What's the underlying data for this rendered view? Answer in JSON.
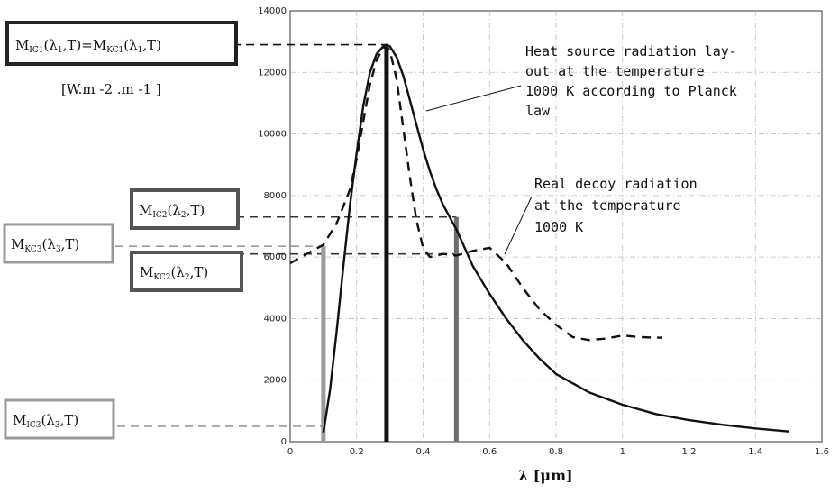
{
  "chart_data": {
    "type": "line",
    "xlabel": "λ [μm]",
    "xlim": [
      0,
      1.6
    ],
    "ylim": [
      0,
      14000
    ],
    "x_ticks": [
      "0",
      "0.2",
      "0.4",
      "0.6",
      "0.8",
      "1",
      "1.2",
      "1.4",
      "1.6"
    ],
    "y_ticks": [
      "0",
      "2000",
      "4000",
      "6000",
      "8000",
      "10000",
      "12000",
      "14000"
    ],
    "grid": true,
    "series": [
      {
        "style": "solid",
        "x": [
          0.1,
          0.12,
          0.14,
          0.16,
          0.18,
          0.2,
          0.22,
          0.24,
          0.26,
          0.28,
          0.29,
          0.3,
          0.32,
          0.34,
          0.36,
          0.38,
          0.4,
          0.42,
          0.44,
          0.46,
          0.48,
          0.5,
          0.55,
          0.6,
          0.65,
          0.7,
          0.75,
          0.8,
          0.9,
          1.0,
          1.1,
          1.2,
          1.3,
          1.4,
          1.5
        ],
        "values": [
          300,
          1700,
          3600,
          5700,
          7700,
          9400,
          10900,
          12000,
          12600,
          12850,
          12900,
          12850,
          12500,
          11900,
          11100,
          10300,
          9500,
          8800,
          8200,
          7700,
          7300,
          6900,
          5700,
          4800,
          4000,
          3300,
          2700,
          2200,
          1600,
          1200,
          900,
          700,
          550,
          430,
          330
        ]
      },
      {
        "style": "dashed",
        "x": [
          0.0,
          0.05,
          0.1,
          0.14,
          0.18,
          0.2,
          0.22,
          0.24,
          0.26,
          0.28,
          0.29,
          0.3,
          0.32,
          0.34,
          0.36,
          0.38,
          0.4,
          0.42,
          0.44,
          0.46,
          0.5,
          0.55,
          0.6,
          0.65,
          0.7,
          0.75,
          0.8,
          0.85,
          0.9,
          0.95,
          1.0,
          1.05,
          1.1,
          1.12
        ],
        "values": [
          5800,
          6100,
          6400,
          7100,
          8200,
          9200,
          10400,
          11600,
          12400,
          12800,
          12850,
          12700,
          11800,
          10200,
          8600,
          7200,
          6300,
          6000,
          6050,
          6100,
          6050,
          6200,
          6300,
          5800,
          5000,
          4300,
          3800,
          3400,
          3300,
          3350,
          3450,
          3400,
          3380,
          3380
        ]
      }
    ],
    "annotations": {
      "planck": [
        "Heat source radiation lay-",
        "out at the temperature",
        "1000 K according to Planck",
        "law"
      ],
      "decoy": [
        "Real decoy radiation",
        "at the temperature",
        "1000 K"
      ]
    },
    "vertical_lines": [
      {
        "x": 0.1,
        "value": 6350,
        "color": "#9a9a9a"
      },
      {
        "x": 0.29,
        "value": 12900,
        "color": "#111111"
      },
      {
        "x": 0.5,
        "value": 7300,
        "color": "#6e6e6e"
      }
    ],
    "dashed_levels": [
      12900,
      7300,
      6350,
      6100,
      500
    ],
    "labels": {
      "m1": {
        "main1": "M",
        "sub1": "IC1",
        "mid": "(λ",
        "sub2": "1",
        "tail": ",T)=M",
        "sub3": "KC1",
        "end": "(λ",
        "sub4": "1",
        "fin": ",T)"
      },
      "unit": "[W.m -2 .m -1 ]",
      "m_ic2": {
        "main": "M",
        "sub": "IC2",
        "arg": "(λ",
        "argsub": "2",
        "end": ",T)"
      },
      "m_kc3": {
        "main": "M",
        "sub": "KC3",
        "arg": "(λ",
        "argsub": "3",
        "end": ",T)"
      },
      "m_kc2": {
        "main": "M",
        "sub": "KC2",
        "arg": "(λ",
        "argsub": "2",
        "end": ",T)"
      },
      "m_ic3": {
        "main": "M",
        "sub": "IC3",
        "arg": "(λ",
        "argsub": "3",
        "end": ",T)"
      }
    },
    "colors": {
      "frame_dark": "#222222",
      "frame_mid": "#555555",
      "frame_light": "#9a9a9a"
    }
  }
}
